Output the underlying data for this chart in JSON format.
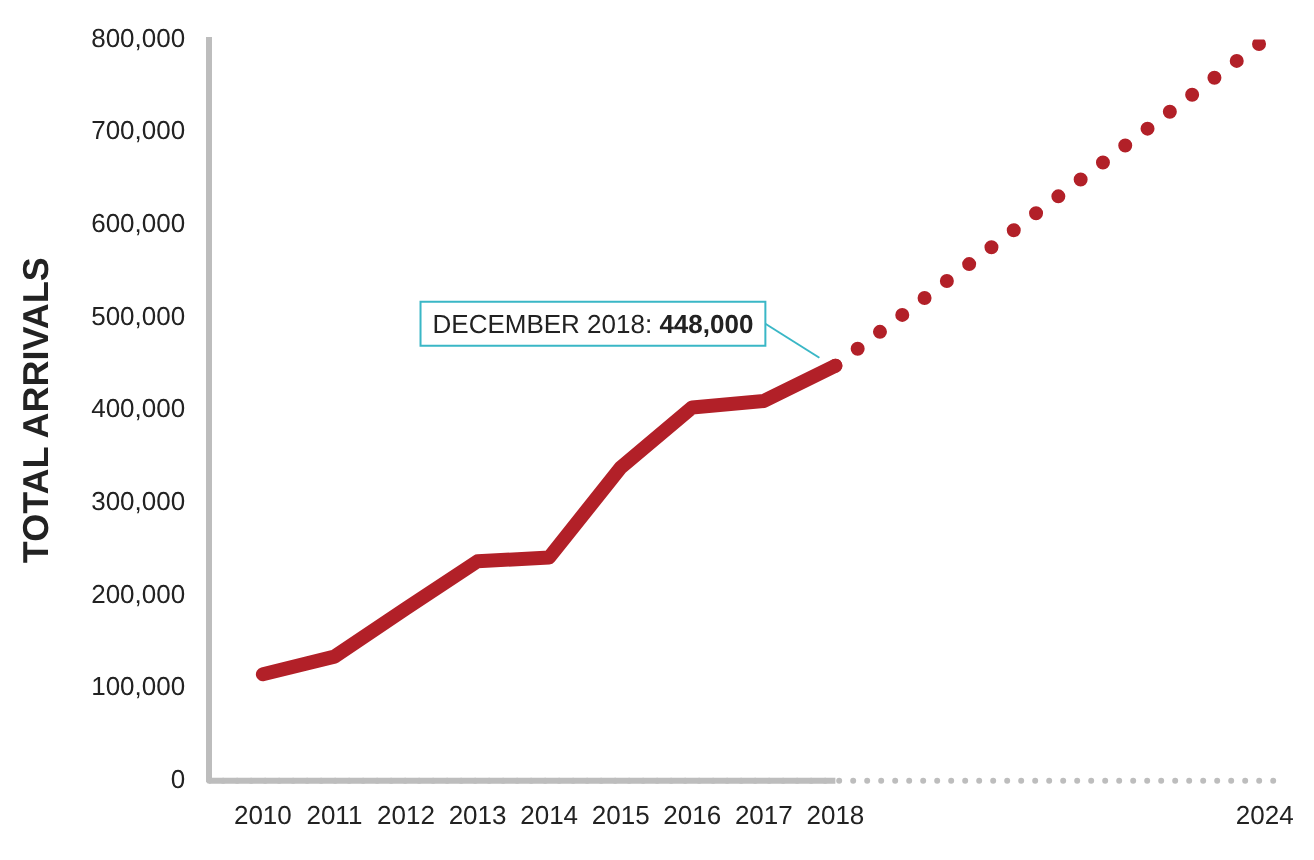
{
  "chart_data": {
    "type": "line",
    "ylabel": "TOTAL ARRIVALS",
    "xlim": [
      2009.25,
      2024.3
    ],
    "xticks": [
      2010,
      2011,
      2012,
      2013,
      2014,
      2015,
      2016,
      2017,
      2018,
      2024
    ],
    "ylim": [
      0,
      800000
    ],
    "yticks": [
      0,
      {
        "value": 100000,
        "label": "100,000"
      },
      {
        "value": 200000,
        "label": "200,000"
      },
      {
        "value": 300000,
        "label": "300,000"
      },
      {
        "value": 400000,
        "label": "400,000"
      },
      {
        "value": 500000,
        "label": "500,000"
      },
      {
        "value": 600000,
        "label": "600,000"
      },
      {
        "value": 700000,
        "label": "700,000"
      },
      {
        "value": 800000,
        "label": "800,000"
      }
    ],
    "grid": false,
    "legend": false,
    "marker": "none",
    "series": [
      {
        "color": "#b22028",
        "x": [
          2010,
          2011,
          2012,
          2013,
          2014,
          2015,
          2016,
          2017,
          2018
        ],
        "values": [
          115000,
          134000,
          186000,
          237000,
          241000,
          338000,
          403000,
          410000,
          448000
        ],
        "line_style": "solid"
      },
      {
        "color": "#b22028",
        "x": [
          2018,
          2024
        ],
        "values": [
          448000,
          800000
        ],
        "line_style": "dotted"
      }
    ],
    "annotations": [
      {
        "text": "DECEMBER 2018: 448,000",
        "x": 2018,
        "y": 448000
      }
    ]
  }
}
